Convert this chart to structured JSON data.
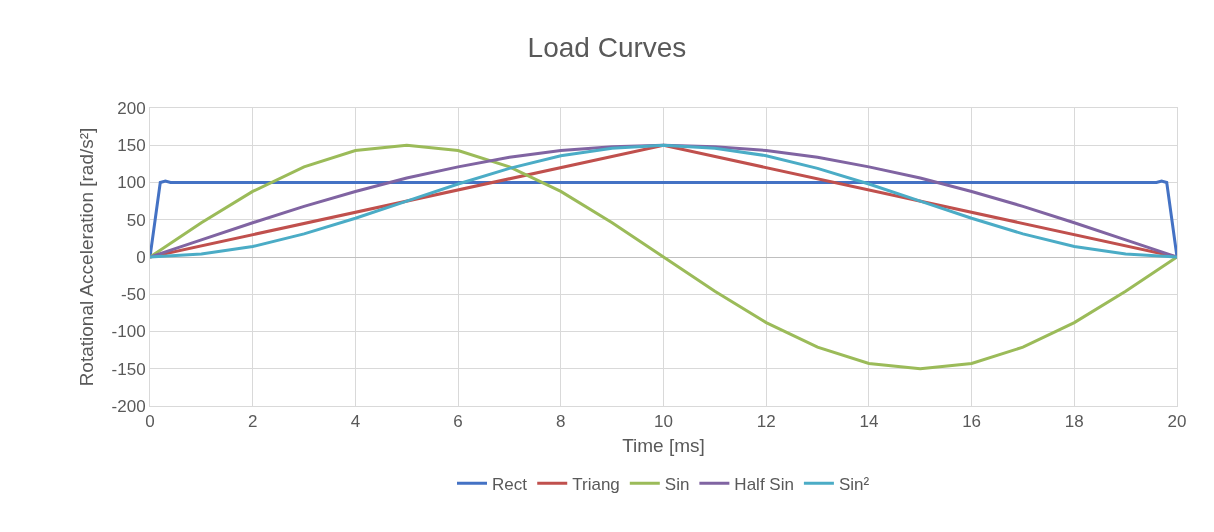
{
  "chart_data": {
    "type": "line",
    "title": "Load Curves",
    "xlabel": "Time [ms]",
    "ylabel": "Rotational Acceleration [rad/s²]",
    "xlim": [
      0,
      20
    ],
    "xticks": [
      0,
      2,
      4,
      6,
      8,
      10,
      12,
      14,
      16,
      18,
      20
    ],
    "ylim": [
      -200,
      200
    ],
    "yticks": [
      -200,
      -150,
      -100,
      -50,
      0,
      50,
      100,
      150,
      200
    ],
    "grid": true,
    "legend": "bottom",
    "marker": "none",
    "line_style": "solid",
    "series": [
      {
        "name": "Rect",
        "color": "#4472c4",
        "x": [
          0,
          0.1,
          0.2,
          0.3,
          0.4,
          19.6,
          19.7,
          19.8,
          19.9,
          20
        ],
        "values": [
          0,
          50,
          100,
          102,
          100,
          100,
          102,
          100,
          50,
          0
        ]
      },
      {
        "name": "Triang",
        "color": "#c0504d",
        "x": [
          0,
          10,
          20
        ],
        "values": [
          0,
          150,
          0
        ]
      },
      {
        "name": "Sin",
        "color": "#9bbb59",
        "x": [
          0,
          1,
          2,
          3,
          4,
          5,
          6,
          7,
          8,
          9,
          10,
          11,
          12,
          13,
          14,
          15,
          16,
          17,
          18,
          19,
          20
        ],
        "values": [
          0,
          46,
          88,
          121,
          143,
          150,
          143,
          121,
          88,
          46,
          0,
          -46,
          -88,
          -121,
          -143,
          -150,
          -143,
          -121,
          -88,
          -46,
          0
        ]
      },
      {
        "name": "Half Sin",
        "color": "#8064a2",
        "x": [
          0,
          1,
          2,
          3,
          4,
          5,
          6,
          7,
          8,
          9,
          10,
          11,
          12,
          13,
          14,
          15,
          16,
          17,
          18,
          19,
          20
        ],
        "values": [
          0,
          23,
          46,
          68,
          88,
          106,
          121,
          134,
          143,
          148,
          150,
          148,
          143,
          134,
          121,
          106,
          88,
          68,
          46,
          23,
          0
        ]
      },
      {
        "name": "Sin²",
        "color": "#4bacc6",
        "x": [
          0,
          1,
          2,
          3,
          4,
          5,
          6,
          7,
          8,
          9,
          10,
          11,
          12,
          13,
          14,
          15,
          16,
          17,
          18,
          19,
          20
        ],
        "values": [
          0,
          4,
          14,
          31,
          52,
          75,
          98,
          119,
          136,
          146,
          150,
          146,
          136,
          119,
          98,
          75,
          52,
          31,
          14,
          4,
          0
        ]
      }
    ]
  }
}
